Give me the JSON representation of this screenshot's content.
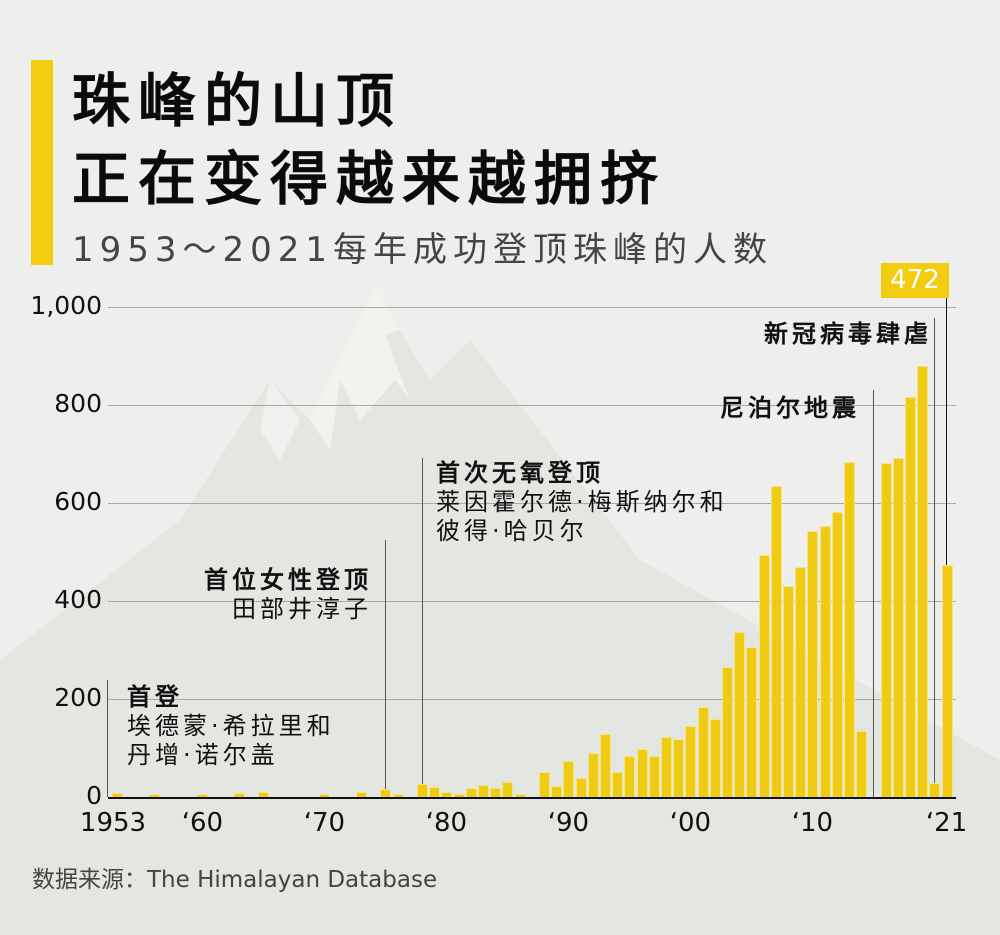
{
  "header": {
    "title_line1": "珠峰的山顶",
    "title_line2": "正在变得越来越拥挤",
    "subtitle": "1953～2021每年成功登顶珠峰的人数",
    "accent_color": "#f2cc0f"
  },
  "highlight_badge": "472",
  "annotations": [
    {
      "title": "首登",
      "lines": [
        "埃德蒙·希拉里和",
        "丹增·诺尔盖"
      ],
      "year": 1953
    },
    {
      "title": "首位女性登顶",
      "lines": [
        "田部井淳子"
      ],
      "year": 1975
    },
    {
      "title": "首次无氧登顶",
      "lines": [
        "莱因霍尔德·梅斯纳尔和",
        "彼得·哈贝尔"
      ],
      "year": 1978
    },
    {
      "title": "尼泊尔地震",
      "lines": [],
      "year": 2015
    },
    {
      "title": "新冠病毒肆虐",
      "lines": [],
      "year": 2020
    }
  ],
  "source": "数据来源：The Himalayan Database",
  "chart_data": {
    "type": "bar",
    "title": "珠峰的山顶正在变得越来越拥挤",
    "subtitle": "1953～2021每年成功登顶珠峰的人数",
    "xlabel": "",
    "ylabel": "",
    "ylim": [
      0,
      1000
    ],
    "yticks": [
      "0",
      "200",
      "400",
      "600",
      "800",
      "1,000"
    ],
    "xticks": [
      {
        "label": "1953",
        "year": 1953
      },
      {
        "label": "‘60",
        "year": 1960
      },
      {
        "label": "‘70",
        "year": 1970
      },
      {
        "label": "‘80",
        "year": 1980
      },
      {
        "label": "‘90",
        "year": 1990
      },
      {
        "label": "‘00",
        "year": 2000
      },
      {
        "label": "‘10",
        "year": 2010
      },
      {
        "label": "‘21",
        "year": 2021
      }
    ],
    "grid": true,
    "bar_color": "#f0cb14",
    "categories": [
      1953,
      1954,
      1955,
      1956,
      1957,
      1958,
      1959,
      1960,
      1961,
      1962,
      1963,
      1964,
      1965,
      1966,
      1967,
      1968,
      1969,
      1970,
      1971,
      1972,
      1973,
      1974,
      1975,
      1976,
      1977,
      1978,
      1979,
      1980,
      1981,
      1982,
      1983,
      1984,
      1985,
      1986,
      1987,
      1988,
      1989,
      1990,
      1991,
      1992,
      1993,
      1994,
      1995,
      1996,
      1997,
      1998,
      1999,
      2000,
      2001,
      2002,
      2003,
      2004,
      2005,
      2006,
      2007,
      2008,
      2009,
      2010,
      2011,
      2012,
      2013,
      2014,
      2015,
      2016,
      2017,
      2018,
      2019,
      2020,
      2021
    ],
    "values": [
      6,
      0,
      0,
      2,
      0,
      0,
      0,
      3,
      0,
      0,
      6,
      0,
      9,
      0,
      0,
      0,
      0,
      2,
      0,
      0,
      8,
      0,
      14,
      2,
      0,
      24,
      18,
      8,
      5,
      16,
      22,
      16,
      29,
      2,
      0,
      49,
      20,
      72,
      37,
      88,
      127,
      49,
      82,
      96,
      82,
      120,
      116,
      143,
      182,
      157,
      263,
      335,
      304,
      492,
      633,
      429,
      467,
      541,
      551,
      580,
      682,
      133,
      0,
      680,
      690,
      814,
      877,
      26,
      472
    ],
    "annotations": [
      {
        "year": 1953,
        "text": "首登 埃德蒙·希拉里和丹增·诺尔盖"
      },
      {
        "year": 1975,
        "text": "首位女性登顶 田部井淳子"
      },
      {
        "year": 1978,
        "text": "首次无氧登顶 莱因霍尔德·梅斯纳尔和彼得·哈贝尔"
      },
      {
        "year": 2015,
        "text": "尼泊尔地震"
      },
      {
        "year": 2020,
        "text": "新冠病毒肆虐"
      },
      {
        "year": 2021,
        "text": "472"
      }
    ]
  }
}
